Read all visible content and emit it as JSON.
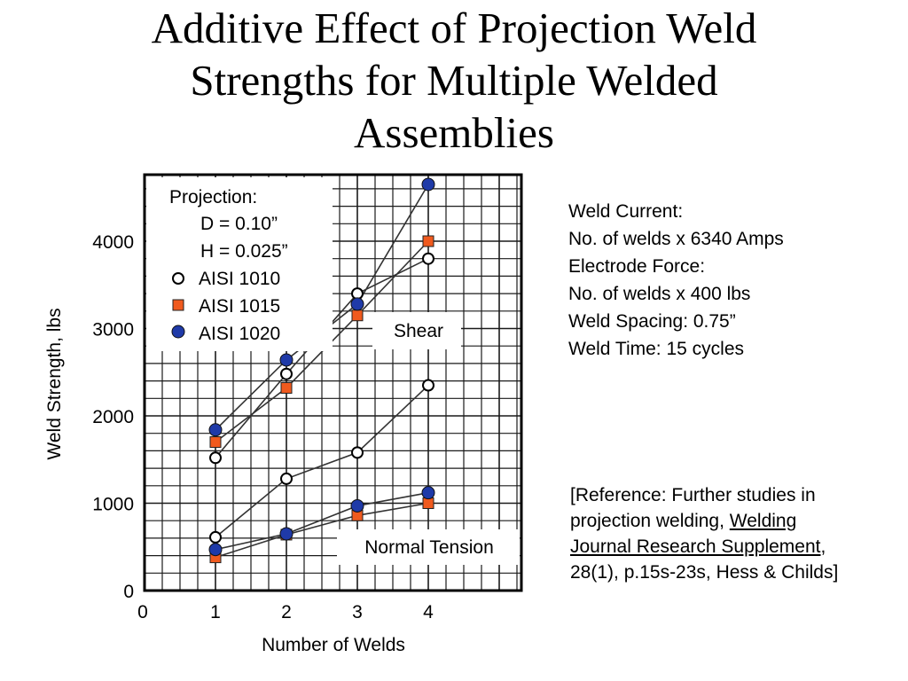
{
  "title_lines": [
    "Additive Effect of Projection Weld",
    "Strengths for Multiple Welded",
    "Assemblies"
  ],
  "info": {
    "lines": [
      "Weld Current:",
      "No. of welds x 6340 Amps",
      "Electrode Force:",
      "No. of welds x 400 lbs",
      "Weld Spacing: 0.75”",
      "Weld Time: 15 cycles"
    ]
  },
  "reference": {
    "line1": "[Reference:  Further studies in",
    "line2_pre": "projection welding, ",
    "line2_u": "Welding",
    "line3_u": "Journal Research Supplement",
    "line3_post": ",",
    "line4": "28(1), p.15s-23s, Hess & Childs]"
  },
  "chart_data": {
    "type": "line",
    "xlabel": "Number of Welds",
    "ylabel": "Weld Strength, lbs",
    "xlim": [
      0,
      5.4
    ],
    "ylim": [
      0,
      4700
    ],
    "x_ticks": [
      0,
      1,
      2,
      3,
      4
    ],
    "y_ticks": [
      0,
      1000,
      2000,
      3000,
      4000
    ],
    "x": [
      1,
      2,
      3,
      4
    ],
    "grid": true,
    "legend": {
      "title": "Projection:",
      "dim_lines": [
        "D = 0.10”",
        "H = 0.025”"
      ],
      "placement": "top-left"
    },
    "groups": [
      {
        "label": "Shear",
        "series": [
          {
            "name": "AISI 1010",
            "marker": "open-circle",
            "values": [
              1520,
              2480,
              3400,
              3800
            ]
          },
          {
            "name": "AISI 1015",
            "marker": "square",
            "values": [
              1700,
              2320,
              3150,
              4000
            ]
          },
          {
            "name": "AISI 1020",
            "marker": "filled-circle",
            "values": [
              1840,
              2640,
              3280,
              4650
            ]
          }
        ]
      },
      {
        "label": "Normal Tension",
        "series": [
          {
            "name": "AISI 1010",
            "marker": "open-circle",
            "values": [
              610,
              1280,
              1580,
              2350
            ]
          },
          {
            "name": "AISI 1015",
            "marker": "square",
            "values": [
              380,
              640,
              860,
              1000
            ]
          },
          {
            "name": "AISI 1020",
            "marker": "filled-circle",
            "values": [
              470,
              650,
              970,
              1120
            ]
          }
        ]
      }
    ],
    "colors": {
      "square_fill": "#f05a1e",
      "filled_circle": "#1f3aa8",
      "line": "#333333",
      "grid": "#1a1a1a"
    }
  }
}
